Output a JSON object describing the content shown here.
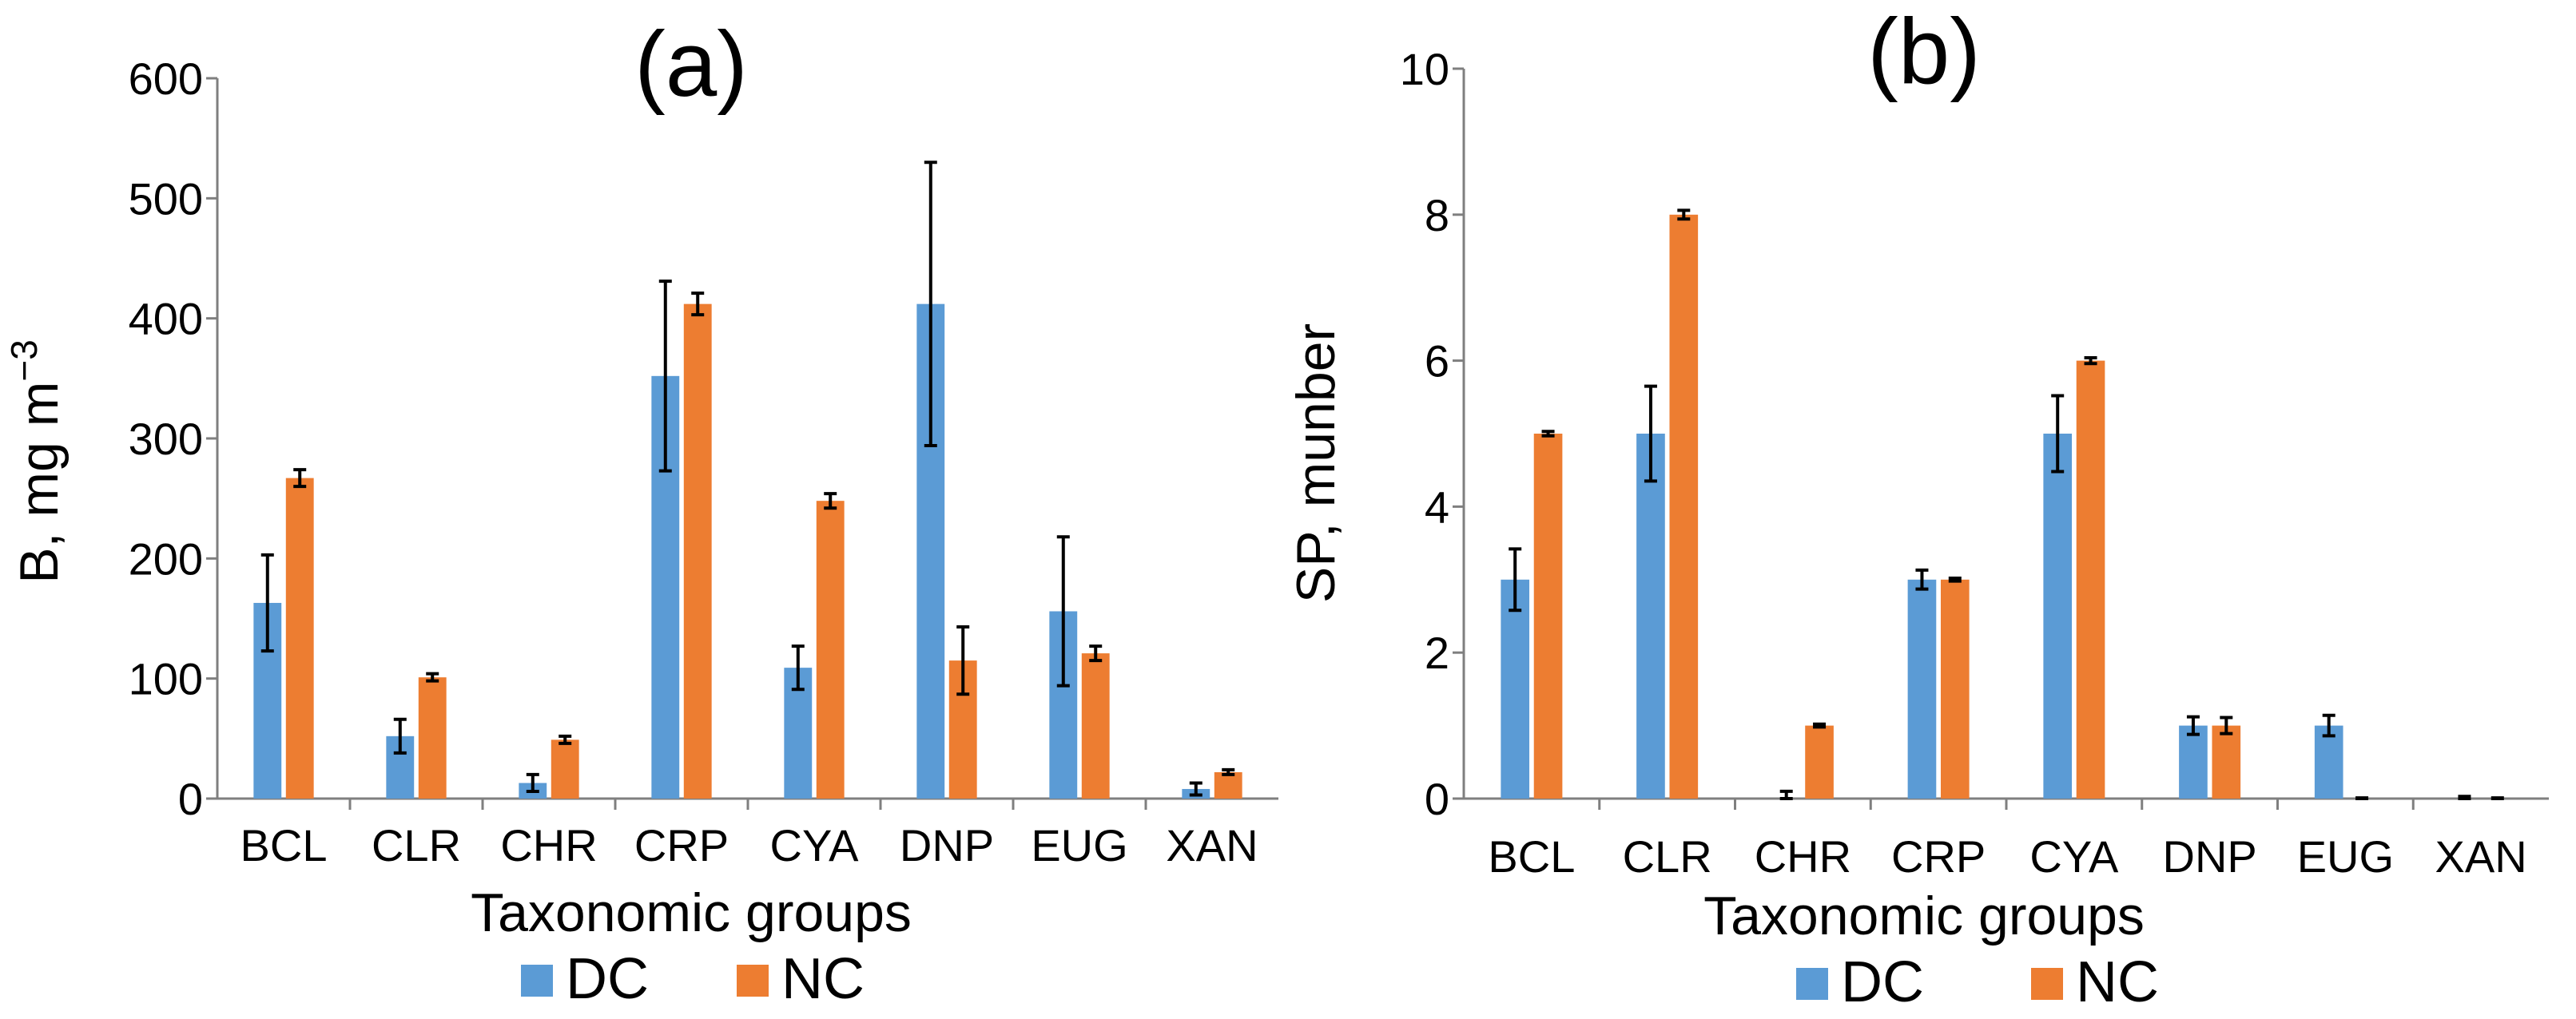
{
  "legend": {
    "items": [
      {
        "label": "DC",
        "color": "#5B9BD5"
      },
      {
        "label": "NC",
        "color": "#ED7D31"
      }
    ]
  },
  "chart_data": [
    {
      "type": "bar",
      "title": "(a)",
      "xlabel": "Taxonomic groups",
      "ylabel": "B, mg m",
      "ylabel_superscript": "−3",
      "ylim": [
        0,
        600
      ],
      "yticks": [
        0,
        100,
        200,
        300,
        400,
        500,
        600
      ],
      "grid": false,
      "legend_position": "bottom",
      "categories": [
        "BCL",
        "CLR",
        "CHR",
        "CRP",
        "CYA",
        "DNP",
        "EUG",
        "XAN"
      ],
      "series": [
        {
          "name": "DC",
          "color": "#5B9BD5",
          "values": [
            163,
            52,
            13,
            352,
            109,
            412,
            156,
            8
          ],
          "errors": [
            40,
            14,
            7,
            79,
            18,
            118,
            62,
            5
          ]
        },
        {
          "name": "NC",
          "color": "#ED7D31",
          "values": [
            267,
            101,
            49,
            412,
            248,
            115,
            121,
            22
          ],
          "errors": [
            7,
            3,
            3,
            9,
            6,
            28,
            6,
            2
          ]
        }
      ]
    },
    {
      "type": "bar",
      "title": "(b)",
      "xlabel": "Taxonomic groups",
      "ylabel": "SP, munber",
      "ylim": [
        0,
        10
      ],
      "yticks": [
        0,
        2,
        4,
        6,
        8,
        10
      ],
      "grid": false,
      "legend_position": "bottom",
      "categories": [
        "BCL",
        "CLR",
        "CHR",
        "CRP",
        "CYA",
        "DNP",
        "EUG",
        "XAN"
      ],
      "series": [
        {
          "name": "DC",
          "color": "#5B9BD5",
          "values": [
            3,
            5,
            0,
            3,
            5,
            1,
            1,
            0
          ],
          "errors": [
            0.42,
            0.65,
            0.1,
            0.13,
            0.52,
            0.12,
            0.14,
            0.03
          ]
        },
        {
          "name": "NC",
          "color": "#ED7D31",
          "values": [
            5,
            8,
            1,
            3,
            6,
            1,
            0,
            0
          ],
          "errors": [
            0.03,
            0.06,
            0.02,
            0.02,
            0.04,
            0.11,
            0.01,
            0.01
          ]
        }
      ]
    }
  ]
}
